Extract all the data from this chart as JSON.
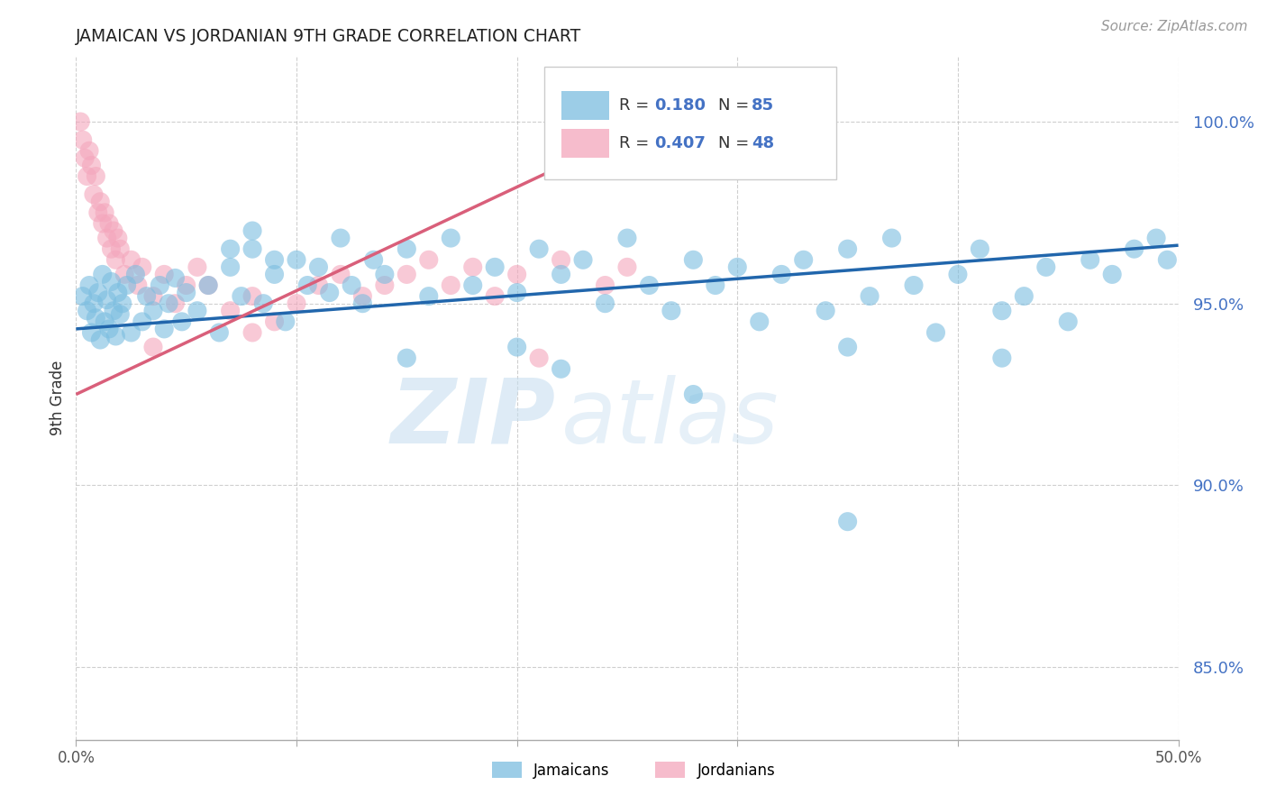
{
  "title": "JAMAICAN VS JORDANIAN 9TH GRADE CORRELATION CHART",
  "source": "Source: ZipAtlas.com",
  "ylabel": "9th Grade",
  "xlim": [
    0.0,
    50.0
  ],
  "ylim": [
    83.0,
    101.8
  ],
  "yticks": [
    85.0,
    90.0,
    95.0,
    100.0
  ],
  "ytick_labels": [
    "85.0%",
    "90.0%",
    "95.0%",
    "100.0%"
  ],
  "xtick_labels": [
    "0.0%",
    "",
    "",
    "",
    "",
    "50.0%"
  ],
  "blue_R": 0.18,
  "blue_N": 85,
  "pink_R": 0.407,
  "pink_N": 48,
  "blue_color": "#7bbde0",
  "pink_color": "#f4a6bc",
  "blue_line_color": "#2166ac",
  "pink_line_color": "#d95f7a",
  "blue_trend": [
    0.0,
    94.3,
    50.0,
    96.6
  ],
  "pink_trend": [
    0.0,
    92.5,
    27.0,
    100.2
  ],
  "background_color": "#ffffff",
  "grid_color": "#bbbbbb",
  "tick_color": "#4472c4",
  "watermark_zip": "ZIP",
  "watermark_atlas": "atlas"
}
